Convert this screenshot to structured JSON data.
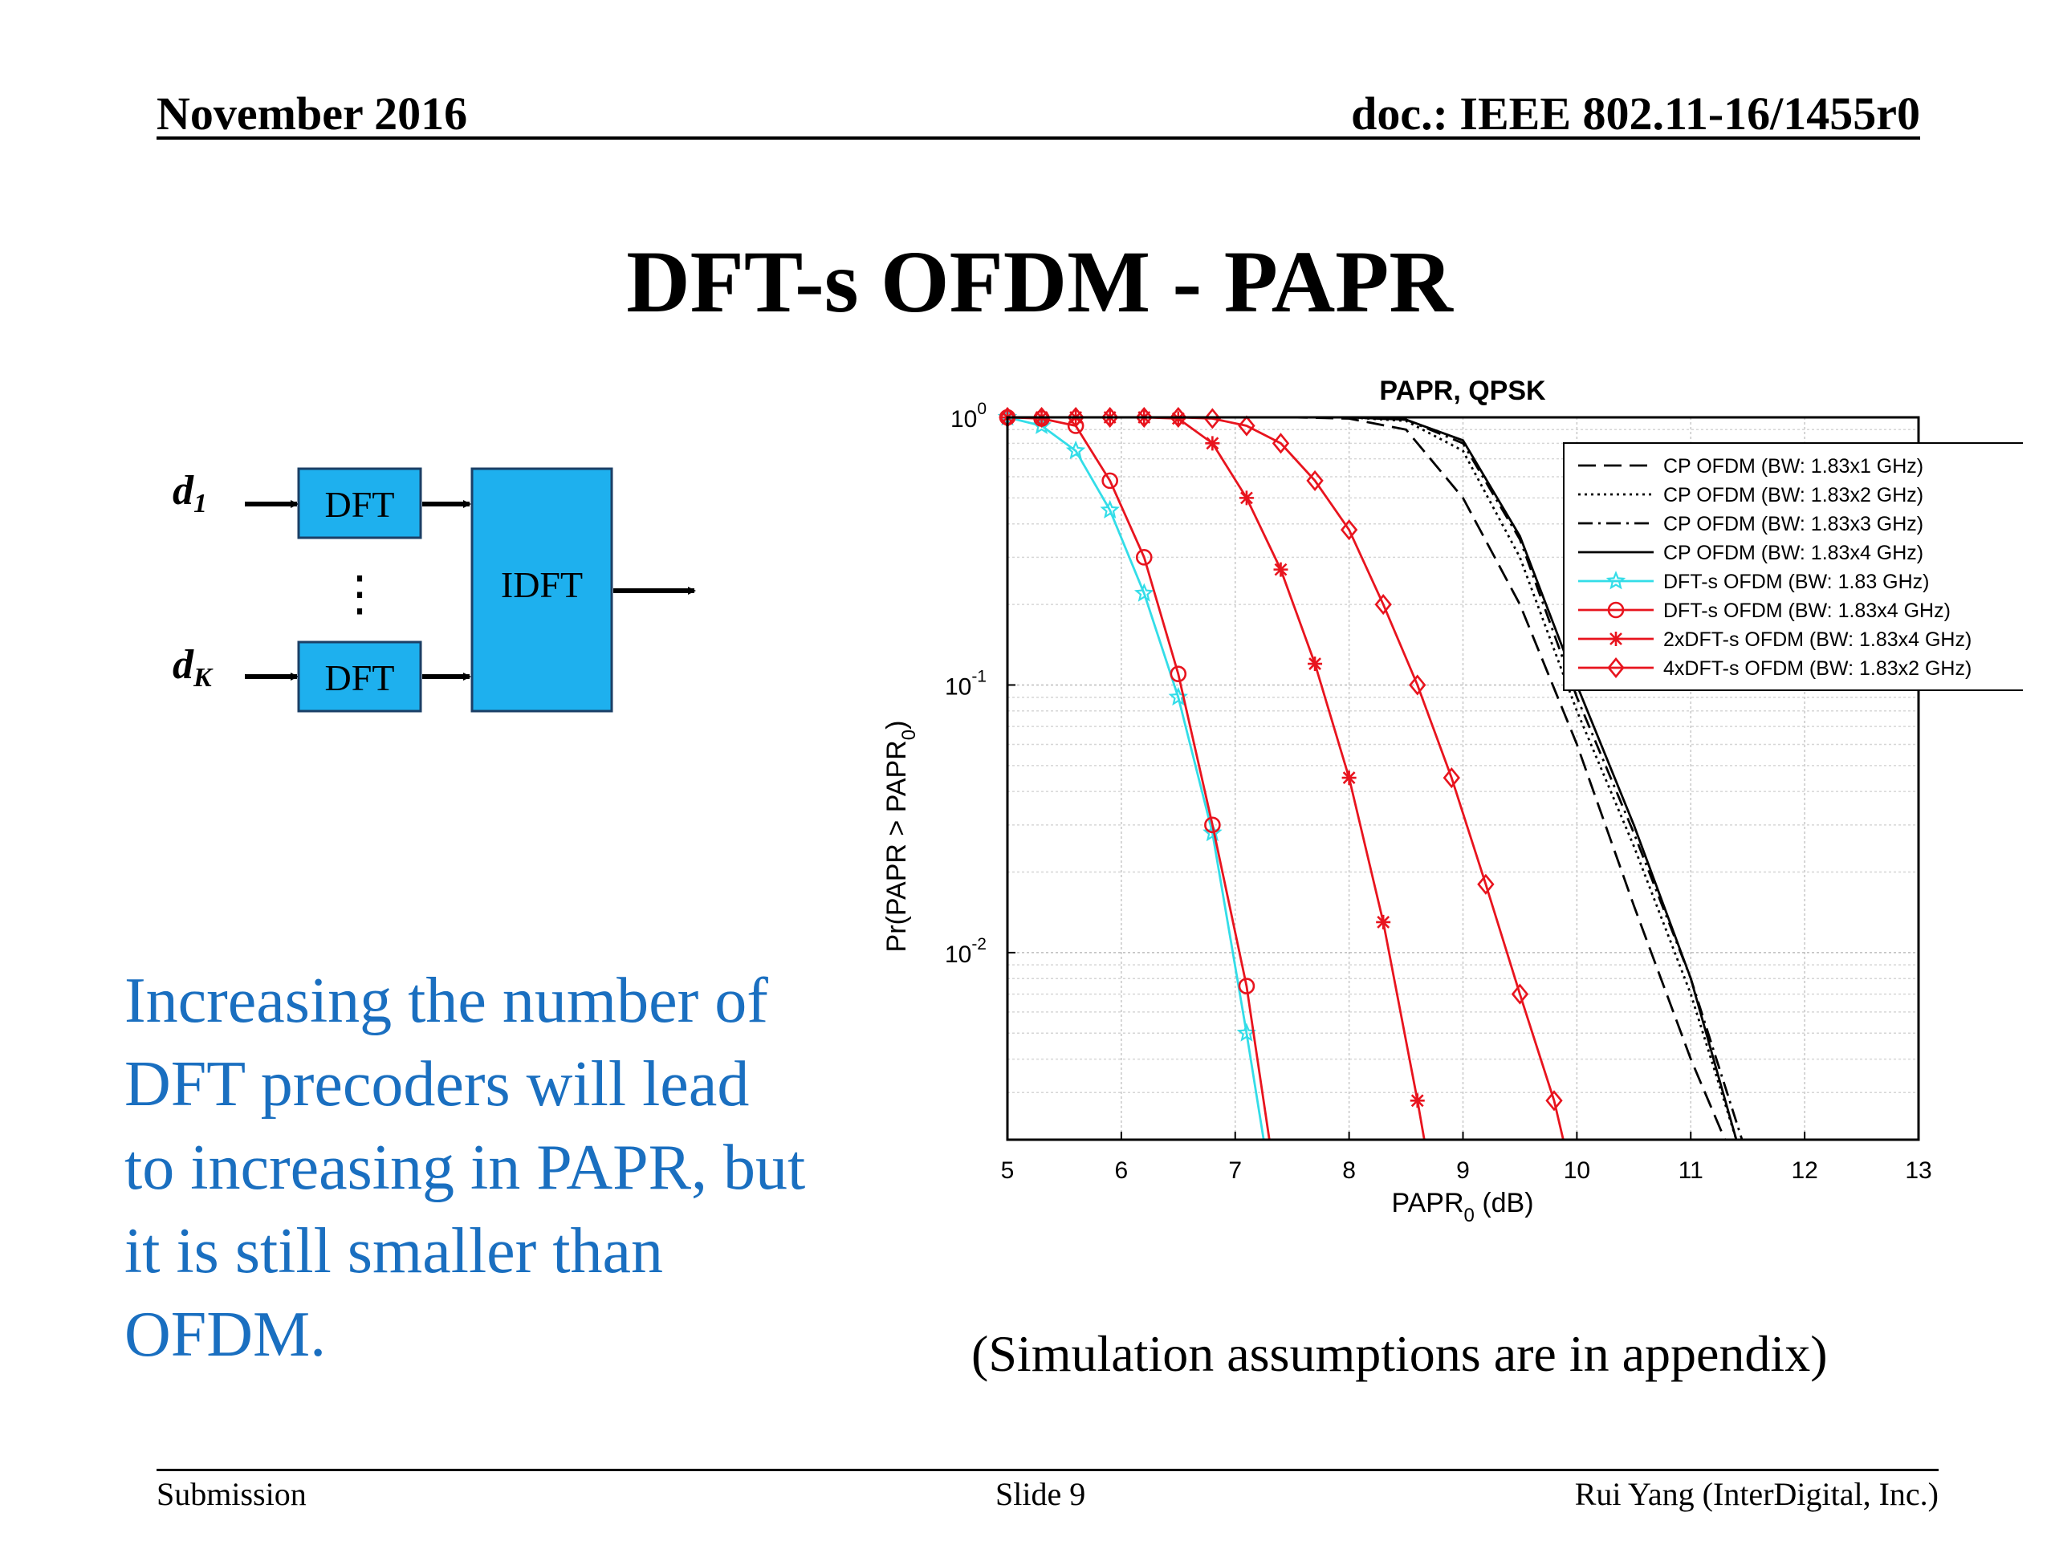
{
  "header": {
    "left": "November 2016",
    "right": "doc.: IEEE 802.11-16/1455r0"
  },
  "slide_title": "DFT-s OFDM - PAPR",
  "diagram": {
    "input_first": "d",
    "input_first_sub": "1",
    "input_last": "d",
    "input_last_sub": "K",
    "dft_label": "DFT",
    "dots": "⋮",
    "idft_label": "IDFT",
    "box_color": "#1eb0ee"
  },
  "body_text": [
    "Increasing the number of",
    "DFT precoders will lead",
    "to increasing in PAPR, but",
    "it is still smaller than",
    "OFDM."
  ],
  "sim_note": "(Simulation assumptions are in appendix)",
  "footer": {
    "left": "Submission",
    "center": "Slide 9",
    "right": "Rui Yang (InterDigital, Inc.)"
  },
  "chart_data": {
    "type": "line",
    "title": "PAPR, QPSK",
    "xlabel": "PAPR",
    "xlabel_sub": "0",
    "xlabel_unit": " (dB)",
    "ylabel": "Pr(PAPR > PAPR",
    "ylabel_sub": "0",
    "ylabel_end": ")",
    "xlim": [
      5,
      13
    ],
    "ylim": [
      0.002,
      1
    ],
    "yscale": "log",
    "xticks": [
      5,
      6,
      7,
      8,
      9,
      10,
      11,
      12,
      13
    ],
    "yticks": [
      {
        "value": 1,
        "base": "10",
        "exp": "0"
      },
      {
        "value": 0.1,
        "base": "10",
        "exp": "-1"
      },
      {
        "value": 0.01,
        "base": "10",
        "exp": "-2"
      }
    ],
    "grid": true,
    "legend_position": "top-right",
    "series": [
      {
        "name": "CP OFDM (BW: 1.83x1 GHz)",
        "color": "#000000",
        "dash": "dashed",
        "marker": "none",
        "x": [
          5,
          6,
          7,
          7.5,
          8,
          8.5,
          9,
          9.5,
          10,
          10.5,
          11,
          11.3
        ],
        "y": [
          1,
          1,
          1,
          1,
          0.99,
          0.9,
          0.5,
          0.2,
          0.06,
          0.015,
          0.004,
          0.002
        ]
      },
      {
        "name": "CP OFDM (BW: 1.83x2 GHz)",
        "color": "#000000",
        "dash": "dotted",
        "marker": "none",
        "x": [
          5,
          6,
          7,
          7.5,
          8,
          8.5,
          9,
          9.5,
          10,
          10.5,
          11,
          11.4
        ],
        "y": [
          1,
          1,
          1,
          1,
          1,
          0.97,
          0.75,
          0.3,
          0.08,
          0.025,
          0.007,
          0.002
        ]
      },
      {
        "name": "CP OFDM (BW: 1.83x3 GHz)",
        "color": "#000000",
        "dash": "dashdot",
        "marker": "none",
        "x": [
          5,
          6,
          7,
          7.5,
          8,
          8.5,
          9,
          9.5,
          10,
          10.5,
          11,
          11.45
        ],
        "y": [
          1,
          1,
          1,
          1,
          1,
          0.98,
          0.8,
          0.35,
          0.09,
          0.028,
          0.008,
          0.002
        ]
      },
      {
        "name": "CP OFDM (BW: 1.83x4 GHz)",
        "color": "#000000",
        "dash": "solid",
        "marker": "none",
        "x": [
          5,
          6,
          7,
          7.5,
          8,
          8.5,
          9,
          9.5,
          10,
          10.5,
          11,
          11.4
        ],
        "y": [
          1,
          1,
          1,
          1,
          1,
          0.98,
          0.82,
          0.36,
          0.1,
          0.03,
          0.008,
          0.002
        ]
      },
      {
        "name": "DFT-s OFDM (BW: 1.83 GHz)",
        "color": "#33dde8",
        "dash": "solid",
        "marker": "star",
        "x": [
          5,
          5.3,
          5.6,
          5.9,
          6.2,
          6.5,
          6.8,
          7.1,
          7.25
        ],
        "y": [
          1,
          0.93,
          0.75,
          0.45,
          0.22,
          0.09,
          0.028,
          0.005,
          0.002
        ]
      },
      {
        "name": "DFT-s OFDM (BW: 1.83x4 GHz)",
        "color": "#e8141e",
        "dash": "solid",
        "marker": "circle",
        "x": [
          5,
          5.3,
          5.6,
          5.9,
          6.2,
          6.5,
          6.8,
          7.1,
          7.3
        ],
        "y": [
          1,
          0.99,
          0.93,
          0.58,
          0.3,
          0.11,
          0.03,
          0.0075,
          0.002
        ]
      },
      {
        "name": "2xDFT-s OFDM (BW: 1.83x4 GHz)",
        "color": "#e8141e",
        "dash": "solid",
        "marker": "asterisk",
        "x": [
          5,
          5.3,
          5.6,
          5.9,
          6.2,
          6.5,
          6.8,
          7.1,
          7.4,
          7.7,
          8.0,
          8.3,
          8.6,
          8.66
        ],
        "y": [
          1,
          1,
          1,
          1,
          1,
          0.99,
          0.8,
          0.5,
          0.27,
          0.12,
          0.045,
          0.013,
          0.0028,
          0.002
        ]
      },
      {
        "name": "4xDFT-s OFDM (BW: 1.83x2 GHz)",
        "color": "#e8141e",
        "dash": "solid",
        "marker": "diamond",
        "x": [
          5,
          5.3,
          5.6,
          5.9,
          6.2,
          6.5,
          6.8,
          7.1,
          7.4,
          7.7,
          8.0,
          8.3,
          8.6,
          8.9,
          9.2,
          9.5,
          9.8,
          9.88
        ],
        "y": [
          1,
          1,
          1,
          1,
          1,
          1,
          0.99,
          0.93,
          0.8,
          0.58,
          0.38,
          0.2,
          0.1,
          0.045,
          0.018,
          0.007,
          0.0028,
          0.002
        ]
      }
    ]
  }
}
